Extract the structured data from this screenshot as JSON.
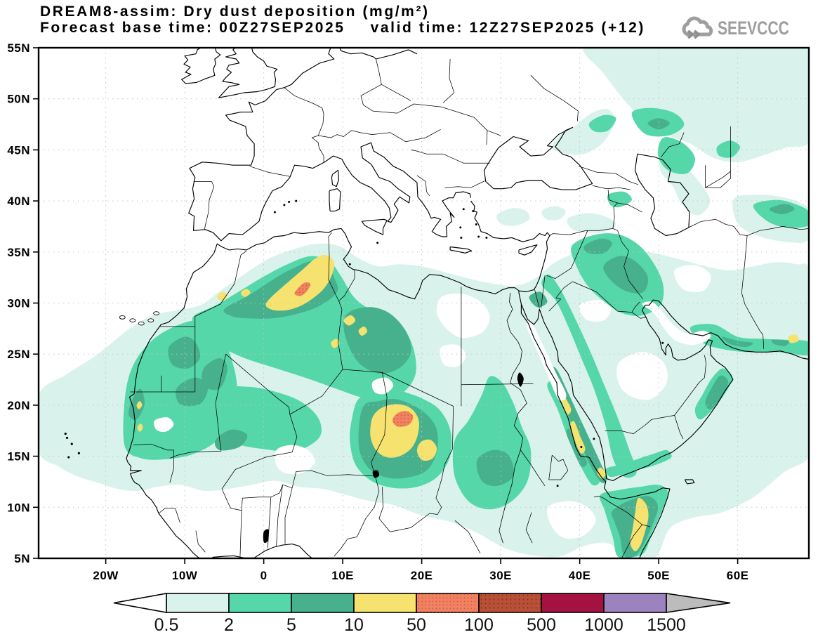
{
  "header": {
    "title": "DREAM8-assim: Dry dust deposition (mg/m²)",
    "forecast_label": "Forecast base time:",
    "forecast_value": "00Z27SEP2025",
    "valid_label": "valid time:",
    "valid_value": "12Z27SEP2025 (+12)"
  },
  "logo": {
    "text": "SEEVCCC"
  },
  "axes": {
    "lat_labels": [
      "55N",
      "50N",
      "45N",
      "40N",
      "35N",
      "30N",
      "25N",
      "20N",
      "15N",
      "10N",
      "5N"
    ],
    "lon_labels": [
      "20W",
      "10W",
      "0",
      "10E",
      "20E",
      "30E",
      "40E",
      "50E",
      "60E"
    ]
  },
  "colorbar": {
    "labels": [
      "0.5",
      "2",
      "5",
      "10",
      "50",
      "100",
      "500",
      "1000",
      "1500"
    ],
    "cell_colors": [
      "#d9f3ec",
      "#55d7aa",
      "#46b18c",
      "#f6e26e",
      "#f08261",
      "#b85038",
      "#a31240",
      "#9c82be"
    ],
    "underflow_color": "#ffffff",
    "overflow_color": "#bcbcbc"
  },
  "chart_data": {
    "type": "heatmap",
    "title": "DREAM8-assim: Dry dust deposition (mg/m²)",
    "units": "mg/m²",
    "forecast_base_time": "00Z27SEP2025",
    "valid_time": "12Z27SEP2025 (+12)",
    "lead_hours": "+12",
    "y_tick_labels": [
      "55N",
      "50N",
      "45N",
      "40N",
      "35N",
      "30N",
      "25N",
      "20N",
      "15N",
      "10N",
      "5N"
    ],
    "x_tick_labels": [
      "20W",
      "10W",
      "0",
      "10E",
      "20E",
      "30E",
      "40E",
      "50E",
      "60E"
    ],
    "contour_levels": [
      0.5,
      2,
      5,
      10,
      50,
      100,
      500,
      1000,
      1500
    ],
    "level_colors": [
      "#ffffff",
      "#d9f3ec",
      "#55d7aa",
      "#46b18c",
      "#f6e26e",
      "#f08261",
      "#b85038",
      "#a31240",
      "#9c82be",
      "#bcbcbc"
    ],
    "legend_position": "bottom",
    "grid": "dotted",
    "max_regions": [
      {
        "area": "NE Algeria (~5E, 31.5N)",
        "value_range": "50-100 mg/m²"
      },
      {
        "area": "Chad / Bodele (~18E, 18.5N)",
        "value_range": "50-100 mg/m²"
      },
      {
        "area": "Algeria-Tunisia band (0-10E, 29-34N)",
        "value_range": "10-50 mg/m²"
      },
      {
        "area": "Chad (14-22E, 14-20N)",
        "value_range": "10-50 mg/m²"
      },
      {
        "area": "Saudi Red Sea coast (37-41E, 15-22N)",
        "value_range": "10-50 mg/m²"
      },
      {
        "area": "NE Somalia coast (46-49E, 5-11N)",
        "value_range": "10-50 mg/m²"
      },
      {
        "area": "Sahara / Sahel broad band (18W-34E, 10-30N)",
        "value_range": "2-10 mg/m²"
      },
      {
        "area": "Mesopotamia / W Iran (40-50E, 29-37N)",
        "value_range": "2-10 mg/m²"
      }
    ]
  }
}
